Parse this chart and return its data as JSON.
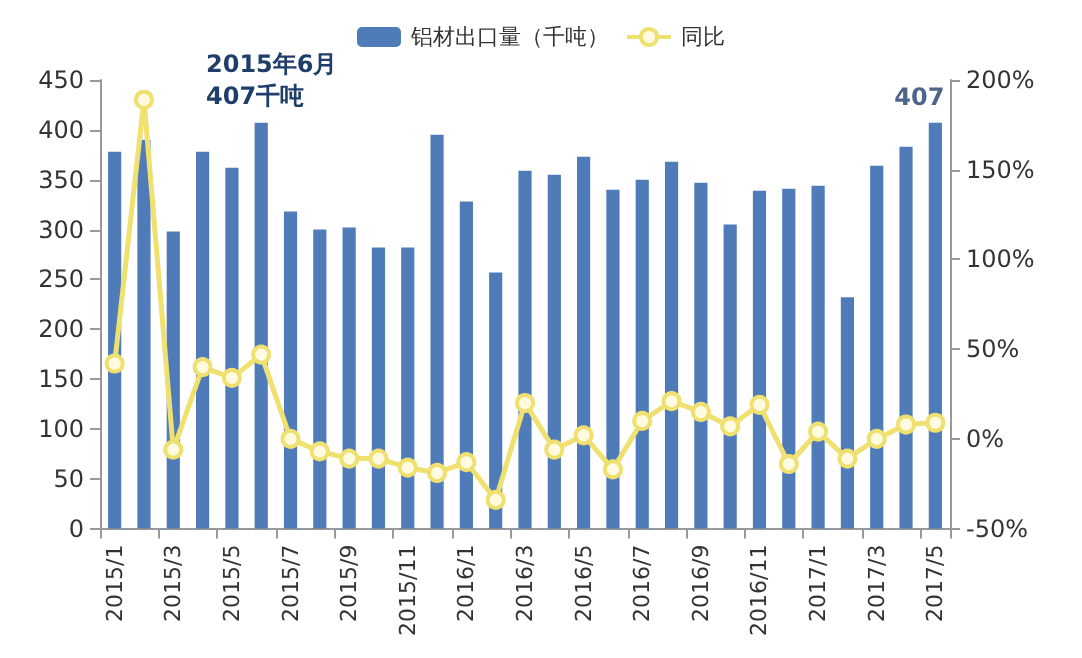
{
  "chart_data": {
    "type": "bar",
    "categories": [
      "2015/1",
      null,
      "2015/3",
      null,
      "2015/5",
      null,
      "2015/7",
      null,
      "2015/9",
      null,
      "2015/11",
      null,
      "2016/1",
      null,
      "2016/3",
      null,
      "2016/5",
      null,
      "2016/7",
      null,
      "2016/9",
      null,
      "2016/11",
      null,
      "2017/1",
      null,
      "2017/3",
      null,
      "2017/5"
    ],
    "series": [
      {
        "name": "铝材出口量（千吨）",
        "color": "#4f7cb8",
        "values": [
          378,
          390,
          298,
          378,
          362,
          407,
          318,
          300,
          302,
          282,
          282,
          395,
          328,
          257,
          359,
          355,
          373,
          340,
          350,
          368,
          347,
          305,
          339,
          341,
          344,
          232,
          364,
          383,
          407
        ]
      },
      {
        "name": "同比",
        "type": "line",
        "axis": "y2",
        "color": "#efe070",
        "values": [
          42,
          189,
          -6,
          40,
          34,
          47,
          0,
          -7,
          -11,
          -11,
          -16,
          -19,
          -13,
          -34,
          20,
          -6,
          2,
          -17,
          10,
          21,
          15,
          7,
          19,
          -14,
          4,
          -11,
          0,
          8,
          9
        ]
      }
    ],
    "ylim": [
      0,
      450
    ],
    "yticks": [
      0,
      50,
      100,
      150,
      200,
      250,
      300,
      350,
      400,
      450
    ],
    "y2lim": [
      -50,
      200
    ],
    "y2ticks": [
      {
        "value": -50,
        "label": "-50%"
      },
      {
        "value": 0,
        "label": "0%"
      },
      {
        "value": 50,
        "label": "50%"
      },
      {
        "value": 100,
        "label": "100%"
      },
      {
        "value": 150,
        "label": "150%"
      },
      {
        "value": 200,
        "label": "200%"
      }
    ],
    "annotations": [
      "2015年6月\n407千吨",
      {
        "text": "407",
        "x": "2017/5",
        "y": 407
      }
    ],
    "legend": "top",
    "grid": false,
    "marker": "circle"
  }
}
